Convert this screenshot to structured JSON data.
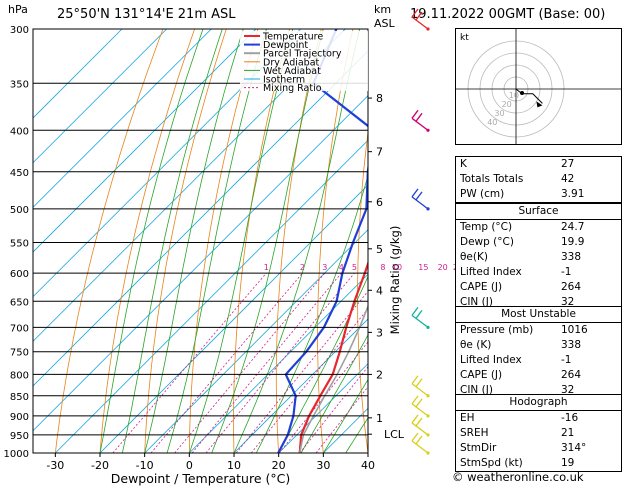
{
  "header": {
    "hpa_label": "hPa",
    "location": "25°50'N  131°14'E  21m  ASL",
    "km_label": "km",
    "asl_label": "ASL",
    "datetime": "19.11.2022  00GMT  (Base: 00)"
  },
  "chart_data": {
    "type": "line",
    "subtype": "skew-t log-p thermodynamic diagram",
    "xlabel": "Dewpoint / Temperature (°C)",
    "ylabel": "Mixing Ratio (g/kg)",
    "xlim": [
      -35,
      40
    ],
    "ylim_hpa": [
      1000,
      300
    ],
    "x_ticks": [
      -30,
      -20,
      -10,
      0,
      10,
      20,
      30,
      40
    ],
    "pressure_levels": [
      300,
      350,
      400,
      450,
      500,
      550,
      600,
      650,
      700,
      750,
      800,
      850,
      900,
      950,
      1000
    ],
    "altitude_km_ticks": [
      {
        "label": "8",
        "p": 365
      },
      {
        "label": "7",
        "p": 425
      },
      {
        "label": "6",
        "p": 490
      },
      {
        "label": "5",
        "p": 560
      },
      {
        "label": "4",
        "p": 630
      },
      {
        "label": "3",
        "p": 710
      },
      {
        "label": "2",
        "p": 800
      },
      {
        "label": "1",
        "p": 905
      },
      {
        "label": "LCL",
        "p": 948
      }
    ],
    "mixing_ratio_labels": [
      "1",
      "2",
      "3",
      "4",
      "5",
      "8",
      "10",
      "15",
      "20",
      "25"
    ],
    "legend": [
      "Temperature",
      "Dewpoint",
      "Parcel Trajectory",
      "Dry Adiabat",
      "Wet Adiabat",
      "Isotherm",
      "Mixing Ratio"
    ],
    "legend_position": "top-left",
    "series": [
      {
        "name": "Temperature",
        "color": "#e8262d",
        "points": [
          [
            1000,
            24.7
          ],
          [
            950,
            21
          ],
          [
            900,
            18.5
          ],
          [
            850,
            16.5
          ],
          [
            800,
            14.5
          ],
          [
            750,
            11
          ],
          [
            700,
            7
          ],
          [
            650,
            3
          ],
          [
            600,
            -1
          ],
          [
            550,
            -5.5
          ],
          [
            500,
            -10
          ],
          [
            450,
            -16
          ],
          [
            400,
            -22.5
          ],
          [
            350,
            -30
          ],
          [
            300,
            -38
          ]
        ]
      },
      {
        "name": "Dewpoint",
        "color": "#1f3fd8",
        "points": [
          [
            1000,
            19.9
          ],
          [
            950,
            18
          ],
          [
            900,
            15
          ],
          [
            850,
            11
          ],
          [
            800,
            4
          ],
          [
            750,
            3.5
          ],
          [
            700,
            2
          ],
          [
            650,
            -1
          ],
          [
            600,
            -6
          ],
          [
            550,
            -10.5
          ],
          [
            500,
            -15
          ],
          [
            450,
            -23
          ],
          [
            400,
            -31
          ],
          [
            350,
            -55
          ],
          [
            300,
            -62
          ]
        ]
      },
      {
        "name": "Parcel Trajectory",
        "color": "#a0a0a0",
        "points": [
          [
            1000,
            24.7
          ],
          [
            950,
            21.5
          ],
          [
            900,
            19.5
          ],
          [
            850,
            17.5
          ],
          [
            800,
            15.5
          ],
          [
            750,
            13
          ],
          [
            700,
            10
          ],
          [
            650,
            6.5
          ],
          [
            600,
            3
          ],
          [
            550,
            -1
          ],
          [
            500,
            -6
          ],
          [
            450,
            -11.5
          ],
          [
            400,
            -18
          ],
          [
            350,
            -26
          ],
          [
            300,
            -35
          ]
        ]
      }
    ]
  },
  "hodograph": {
    "label": "kt",
    "ring_labels": [
      "10",
      "20",
      "30",
      "40"
    ],
    "points": [
      [
        0,
        0
      ],
      [
        5,
        -4
      ],
      [
        14,
        -4
      ],
      [
        22,
        -12
      ]
    ]
  },
  "wind_barbs": [
    {
      "p": 300,
      "color": "#e8262d"
    },
    {
      "p": 400,
      "color": "#d0006f"
    },
    {
      "p": 500,
      "color": "#1f3fd8"
    },
    {
      "p": 700,
      "color": "#13b39b"
    },
    {
      "p": 850,
      "color": "#d8d01a"
    },
    {
      "p": 900,
      "color": "#d8d01a"
    },
    {
      "p": 950,
      "color": "#d8d01a"
    },
    {
      "p": 1000,
      "color": "#d8d01a"
    }
  ],
  "indices": {
    "rows": [
      {
        "label": "K",
        "value": "27"
      },
      {
        "label": "Totals Totals",
        "value": "42"
      },
      {
        "label": "PW (cm)",
        "value": "3.91"
      }
    ]
  },
  "surface": {
    "title": "Surface",
    "rows": [
      {
        "label": "Temp (°C)",
        "value": "24.7"
      },
      {
        "label": "Dewp (°C)",
        "value": "19.9"
      },
      {
        "label": "θe(K)",
        "value": "338"
      },
      {
        "label": "Lifted Index",
        "value": "-1"
      },
      {
        "label": "CAPE (J)",
        "value": "264"
      },
      {
        "label": "CIN (J)",
        "value": "32"
      }
    ]
  },
  "most_unstable": {
    "title": "Most Unstable",
    "rows": [
      {
        "label": "Pressure (mb)",
        "value": "1016"
      },
      {
        "label": "θe (K)",
        "value": "338"
      },
      {
        "label": "Lifted Index",
        "value": "-1"
      },
      {
        "label": "CAPE (J)",
        "value": "264"
      },
      {
        "label": "CIN (J)",
        "value": "32"
      }
    ]
  },
  "hodograph_table": {
    "title": "Hodograph",
    "rows": [
      {
        "label": "EH",
        "value": "-16"
      },
      {
        "label": "SREH",
        "value": "21"
      },
      {
        "label": "StmDir",
        "value": "314°"
      },
      {
        "label": "StmSpd (kt)",
        "value": "19"
      }
    ]
  },
  "footer": {
    "copyright": "© weatheronline.co.uk"
  },
  "colors": {
    "temperature": "#e8262d",
    "dewpoint": "#1f3fd8",
    "parcel": "#a0a0a0",
    "dry_adiabat": "#e8841a",
    "wet_adiabat": "#2aa52a",
    "isotherm": "#18a8e0",
    "mixing_ratio": "#d0208f"
  }
}
